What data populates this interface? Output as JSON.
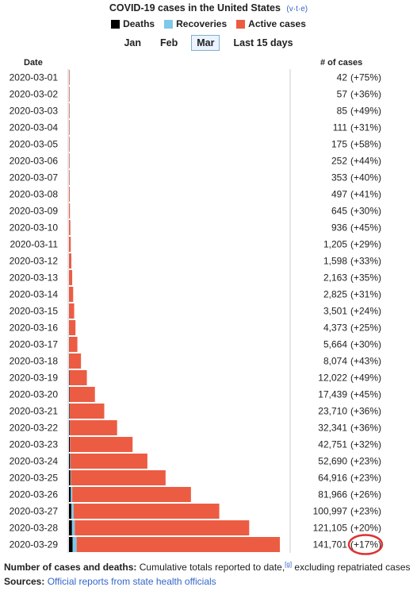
{
  "header": {
    "title": "COVID-19 cases in the United States",
    "vte": [
      "v",
      "t",
      "e"
    ]
  },
  "legend": [
    {
      "label": "Deaths",
      "color": "#000000"
    },
    {
      "label": "Recoveries",
      "color": "#7fc8e8"
    },
    {
      "label": "Active cases",
      "color": "#ec5c43"
    }
  ],
  "tabs": [
    {
      "label": "Jan",
      "active": false
    },
    {
      "label": "Feb",
      "active": false
    },
    {
      "label": "Mar",
      "active": true
    },
    {
      "label": "Last 15 days",
      "active": false
    }
  ],
  "columns": {
    "date": "Date",
    "cases": "# of cases"
  },
  "chart_data": {
    "type": "bar",
    "orientation": "horizontal",
    "stacked": true,
    "categories": [
      "2020-03-01",
      "2020-03-02",
      "2020-03-03",
      "2020-03-04",
      "2020-03-05",
      "2020-03-06",
      "2020-03-07",
      "2020-03-08",
      "2020-03-09",
      "2020-03-10",
      "2020-03-11",
      "2020-03-12",
      "2020-03-13",
      "2020-03-14",
      "2020-03-15",
      "2020-03-16",
      "2020-03-17",
      "2020-03-18",
      "2020-03-19",
      "2020-03-20",
      "2020-03-21",
      "2020-03-22",
      "2020-03-23",
      "2020-03-24",
      "2020-03-25",
      "2020-03-26",
      "2020-03-27",
      "2020-03-28",
      "2020-03-29"
    ],
    "series": [
      {
        "name": "Deaths",
        "color": "#000000",
        "values": [
          1,
          6,
          9,
          11,
          12,
          14,
          17,
          21,
          22,
          28,
          36,
          40,
          47,
          54,
          63,
          85,
          108,
          118,
          200,
          244,
          307,
          427,
          552,
          706,
          942,
          1209,
          1581,
          2026,
          2467
        ]
      },
      {
        "name": "Recoveries",
        "color": "#7fc8e8",
        "values": [
          7,
          7,
          7,
          7,
          7,
          10,
          10,
          10,
          10,
          10,
          10,
          10,
          12,
          12,
          12,
          12,
          12,
          12,
          106,
          147,
          171,
          178,
          178,
          348,
          361,
          1000,
          1500,
          1863,
          2665
        ]
      },
      {
        "name": "Active cases",
        "color": "#ec5c43",
        "values": [
          34,
          44,
          69,
          93,
          156,
          228,
          326,
          466,
          613,
          898,
          1159,
          1548,
          2104,
          2759,
          3426,
          4276,
          5544,
          7944,
          11716,
          17048,
          23232,
          31736,
          42021,
          51636,
          63613,
          79757,
          97916,
          117216,
          136569
        ]
      }
    ],
    "totals": [
      "42",
      "57",
      "85",
      "111",
      "175",
      "252",
      "353",
      "497",
      "645",
      "936",
      "1,205",
      "1,598",
      "2,163",
      "2,825",
      "3,501",
      "4,373",
      "5,664",
      "8,074",
      "12,022",
      "17,439",
      "23,710",
      "32,341",
      "42,751",
      "52,690",
      "64,916",
      "81,966",
      "100,997",
      "121,105",
      "141,701"
    ],
    "changes": [
      "(+75%)",
      "(+36%)",
      "(+49%)",
      "(+31%)",
      "(+58%)",
      "(+44%)",
      "(+40%)",
      "(+41%)",
      "(+30%)",
      "(+45%)",
      "(+29%)",
      "(+33%)",
      "(+35%)",
      "(+31%)",
      "(+24%)",
      "(+25%)",
      "(+30%)",
      "(+43%)",
      "(+49%)",
      "(+45%)",
      "(+36%)",
      "(+36%)",
      "(+32%)",
      "(+23%)",
      "(+23%)",
      "(+26%)",
      "(+23%)",
      "(+20%)",
      "(+17%)"
    ],
    "xlim": [
      0,
      141701
    ],
    "highlight_index": 28,
    "highlight_color": "#d33"
  },
  "footnote": {
    "label": "Number of cases and deaths:",
    "text": "Cumulative totals reported to date,",
    "ref": "[g]",
    "suffix": "excluding repatriated cases"
  },
  "sources": {
    "label": "Sources:",
    "link": "Official reports from state health officials"
  }
}
